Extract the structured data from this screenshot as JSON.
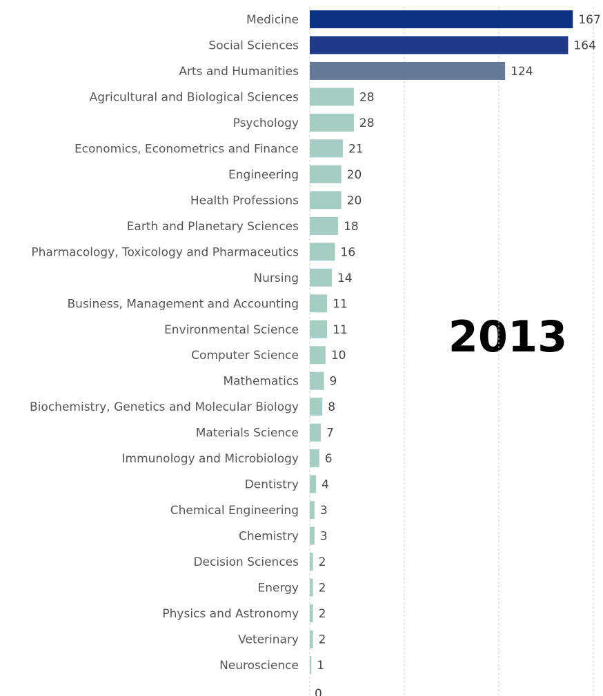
{
  "chart_data": {
    "type": "barh",
    "annotation": "2013",
    "categories": [
      "Medicine",
      "Social Sciences",
      "Arts and Humanities",
      "Agricultural and Biological Sciences",
      "Psychology",
      "Economics, Econometrics and Finance",
      "Engineering",
      "Health Professions",
      "Earth and Planetary Sciences",
      "Pharmacology, Toxicology and Pharmaceutics",
      "Nursing",
      "Business, Management and Accounting",
      "Environmental Science",
      "Computer Science",
      "Mathematics",
      "Biochemistry, Genetics and Molecular Biology",
      "Materials Science",
      "Immunology and Microbiology",
      "Dentistry",
      "Chemical Engineering",
      "Chemistry",
      "Decision Sciences",
      "Energy",
      "Physics and Astronomy",
      "Veterinary",
      "Neuroscience"
    ],
    "values": [
      167,
      164,
      124,
      28,
      28,
      21,
      20,
      20,
      18,
      16,
      14,
      11,
      11,
      10,
      9,
      8,
      7,
      6,
      4,
      3,
      3,
      2,
      2,
      2,
      2,
      1
    ],
    "colors": [
      "#0b3382",
      "#1e3a88",
      "#657a99",
      "#a4cdc3",
      "#a4cdc3",
      "#a4cdc3",
      "#a4cdc3",
      "#a4cdc3",
      "#a4cdc3",
      "#a4cdc3",
      "#a4cdc3",
      "#a4cdc3",
      "#a4cdc3",
      "#a4cdc3",
      "#a4cdc3",
      "#a4cdc3",
      "#a4cdc3",
      "#a4cdc3",
      "#a4cdc3",
      "#a4cdc3",
      "#a4cdc3",
      "#a4cdc3",
      "#a4cdc3",
      "#a4cdc3",
      "#a4cdc3",
      "#a4cdc3"
    ],
    "xlim": [
      0,
      180
    ],
    "xticks": [
      0
    ],
    "gridlines": [
      60,
      120,
      180
    ],
    "grid": true
  }
}
